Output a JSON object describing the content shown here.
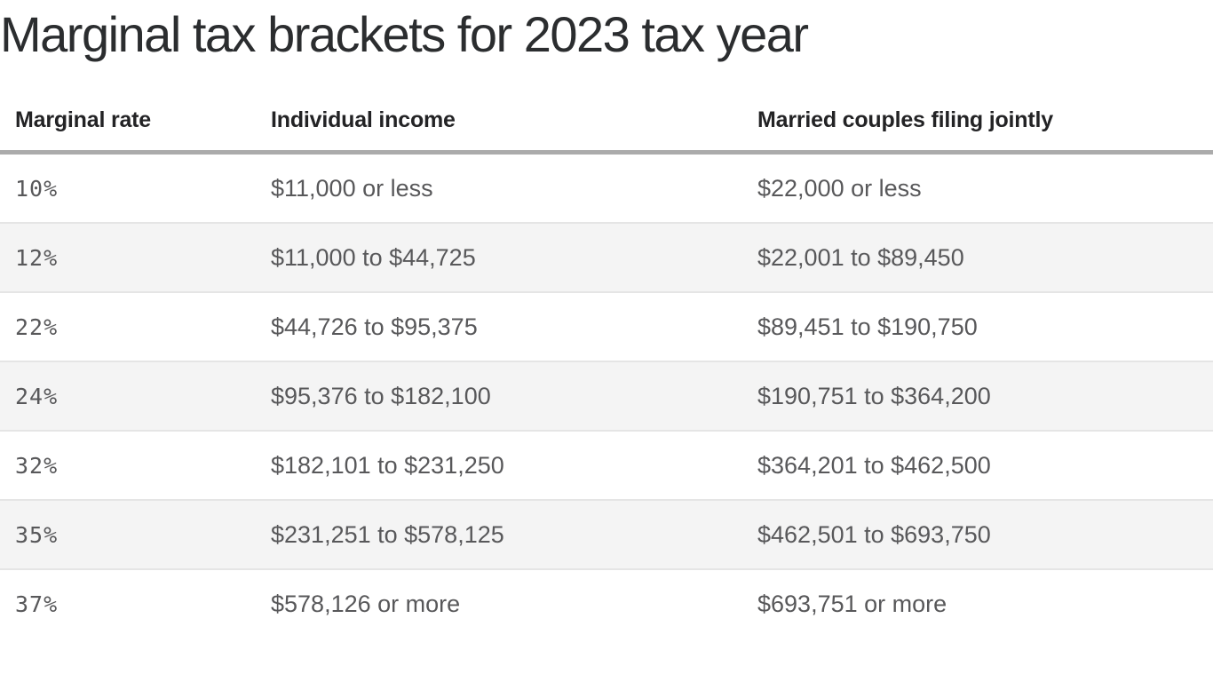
{
  "chart_data": {
    "type": "table",
    "title": "Marginal tax brackets for 2023 tax year",
    "columns": [
      "Marginal rate",
      "Individual income",
      "Married couples filing jointly"
    ],
    "rows": [
      [
        "10%",
        "$11,000 or less",
        "$22,000 or less"
      ],
      [
        "12%",
        "$11,000 to $44,725",
        "$22,001 to $89,450"
      ],
      [
        "22%",
        "$44,726 to $95,375",
        "$89,451 to $190,750"
      ],
      [
        "24%",
        "$95,376 to $182,100",
        "$190,751 to $364,200"
      ],
      [
        "32%",
        "$182,101 to $231,250",
        "$364,201 to $462,500"
      ],
      [
        "35%",
        "$231,251 to $578,125",
        "$462,501 to $693,750"
      ],
      [
        "37%",
        "$578,126 or more",
        "$693,751 or more"
      ]
    ],
    "layout": {
      "row_striping": true,
      "header_rule": true,
      "legend": "none",
      "grid": "horizontal-row-separators"
    }
  },
  "colors": {
    "background": "#ffffff",
    "title_text": "#2b2d2f",
    "header_text": "#232325",
    "body_text": "#58585a",
    "header_rule": "#ababab",
    "row_alt_background": "#f4f4f4",
    "row_separator": "#e5e5e5"
  }
}
